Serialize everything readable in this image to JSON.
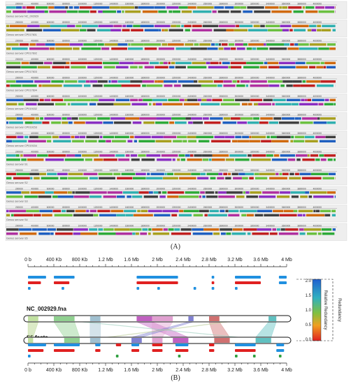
{
  "figure": {
    "panel_a_caption": "(A)",
    "panel_b_caption": "(B)"
  },
  "panel_a": {
    "ruler_ticks": [
      "200000",
      "400000",
      "600000",
      "800000",
      "1000000",
      "1200000",
      "1400000",
      "1600000",
      "1800000",
      "2000000",
      "2200000",
      "2400000",
      "2600000",
      "2800000",
      "3000000",
      "3200000",
      "3400000",
      "3600000",
      "3800000",
      "4000000"
    ],
    "genome_labels": [
      "Genus serovar NC_002929",
      "Genus serovar CP017601",
      "Genus serovar CP017602",
      "Genus serovar CP017603",
      "Genus serovar CP017604",
      "Genus serovar CP019152",
      "Genus serovar CP019153",
      "Genus serovar CP019154",
      "Genus serovar S1",
      "Genus serovar S2",
      "Genus serovar S3",
      "Genus serovar S4",
      "Genus serovar S5"
    ],
    "block_colors": [
      "#2eaa3a",
      "#8a2fc2",
      "#c02020",
      "#a8a020",
      "#2060c0",
      "#30b0b0",
      "#d06a10",
      "#6bc040",
      "#b030a0",
      "#404040"
    ]
  },
  "panel_b": {
    "axis_ticks": [
      "0 b",
      "400 Kb",
      "800 Kb",
      "1.2 Mb",
      "1.6 Mb",
      "2 Mb",
      "2.4 Mb",
      "2.8 Mb",
      "3.2 Mb",
      "3.6 Mb",
      "4 Mb"
    ],
    "top_genome": "NC_002929.fna",
    "bottom_genome": "S5.fasta",
    "legend_title": "Relative Redundancy",
    "legend_side_title": "Redundancy",
    "legend_ticks": [
      "2.0",
      "1.5",
      "1.0",
      "0.5",
      "0.0"
    ]
  }
}
